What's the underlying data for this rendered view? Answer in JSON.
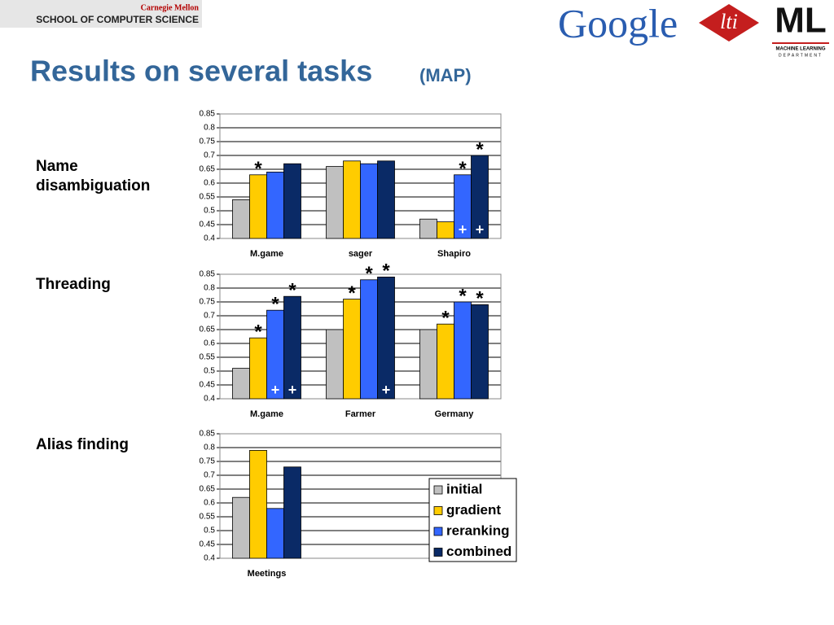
{
  "header": {
    "university": "Carnegie Mellon",
    "school": "SCHOOL OF COMPUTER SCIENCE",
    "logo_google": "Google",
    "logo_lti": "lti",
    "logo_ml": "ML",
    "logo_ml_sub1": "MACHINE LEARNING",
    "logo_ml_sub2": "DEPARTMENT"
  },
  "title": "Results on several tasks",
  "title_suffix": "(MAP)",
  "row_labels": [
    "Name disambiguation",
    "Threading",
    "Alias finding"
  ],
  "chart_data": [
    {
      "type": "bar",
      "categories": [
        "M.game",
        "sager",
        "Shapiro"
      ],
      "ylim": [
        0.4,
        0.85
      ],
      "yticks": [
        0.4,
        0.45,
        0.5,
        0.55,
        0.6,
        0.65,
        0.7,
        0.75,
        0.8,
        0.85
      ],
      "grid": true,
      "series": [
        {
          "color": "#c0c0c0",
          "values": [
            0.54,
            0.66,
            0.47
          ]
        },
        {
          "color": "#ffcc00",
          "values": [
            0.63,
            0.68,
            0.46
          ],
          "annotations": [
            "*",
            null,
            null
          ]
        },
        {
          "color": "#3366ff",
          "values": [
            0.64,
            0.67,
            0.63
          ],
          "annotations": [
            null,
            null,
            "*"
          ],
          "bottom_annotations": [
            null,
            null,
            "+"
          ]
        },
        {
          "color": "#0a2a66",
          "values": [
            0.67,
            0.68,
            0.7
          ],
          "annotations": [
            null,
            null,
            "*"
          ],
          "bottom_annotations": [
            null,
            null,
            "+"
          ]
        }
      ]
    },
    {
      "type": "bar",
      "categories": [
        "M.game",
        "Farmer",
        "Germany"
      ],
      "ylim": [
        0.4,
        0.85
      ],
      "yticks": [
        0.4,
        0.45,
        0.5,
        0.55,
        0.6,
        0.65,
        0.7,
        0.75,
        0.8,
        0.85
      ],
      "grid": true,
      "series": [
        {
          "color": "#c0c0c0",
          "values": [
            0.51,
            0.65,
            0.65
          ]
        },
        {
          "color": "#ffcc00",
          "values": [
            0.62,
            0.76,
            0.67
          ],
          "annotations": [
            "*",
            "*",
            "*"
          ]
        },
        {
          "color": "#3366ff",
          "values": [
            0.72,
            0.83,
            0.75
          ],
          "annotations": [
            "*",
            "*",
            "*"
          ],
          "bottom_annotations": [
            "+",
            null,
            null
          ]
        },
        {
          "color": "#0a2a66",
          "values": [
            0.77,
            0.84,
            0.74
          ],
          "annotations": [
            "*",
            "*",
            "*"
          ],
          "bottom_annotations": [
            "+",
            "+",
            null
          ]
        }
      ]
    },
    {
      "type": "bar",
      "categories": [
        "Meetings",
        null,
        null
      ],
      "ylim": [
        0.4,
        0.85
      ],
      "yticks": [
        0.4,
        0.45,
        0.5,
        0.55,
        0.6,
        0.65,
        0.7,
        0.75,
        0.8,
        0.85
      ],
      "grid": true,
      "legend": "lower right",
      "series": [
        {
          "name": "initial",
          "color": "#c0c0c0",
          "values": [
            0.62,
            null,
            null
          ]
        },
        {
          "name": "gradient",
          "color": "#ffcc00",
          "values": [
            0.79,
            null,
            null
          ]
        },
        {
          "name": "reranking",
          "color": "#3366ff",
          "values": [
            0.58,
            null,
            null
          ]
        },
        {
          "name": "combined",
          "color": "#0a2a66",
          "values": [
            0.73,
            null,
            null
          ]
        }
      ]
    }
  ]
}
